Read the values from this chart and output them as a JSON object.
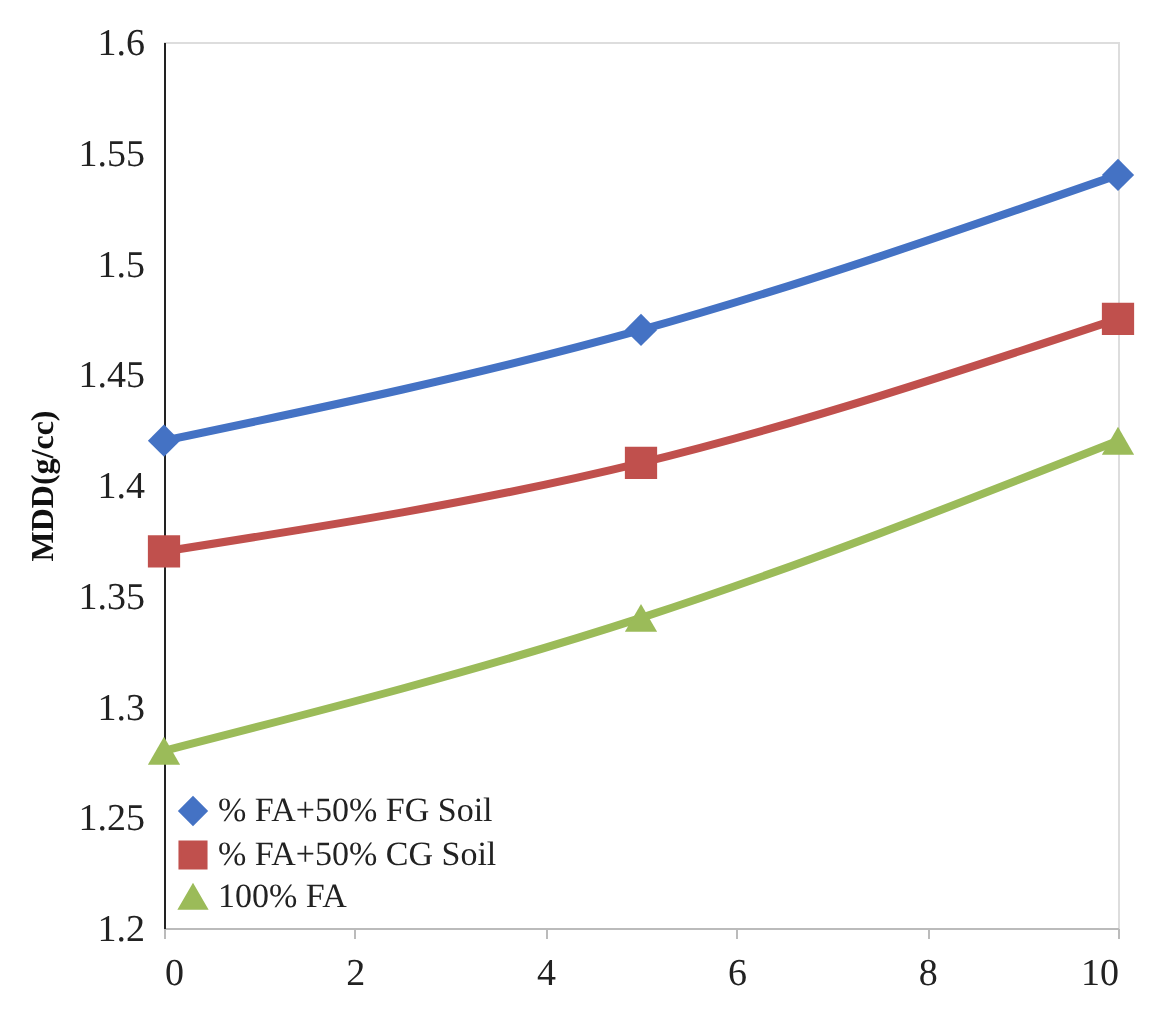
{
  "chart_data": {
    "type": "line",
    "ylabel": "MDD(g/cc)",
    "x": [
      0,
      5,
      10
    ],
    "series": [
      {
        "name": "% FA+50% FG Soil",
        "color": "#4472c4",
        "marker": "diamond",
        "values": [
          1.42,
          1.47,
          1.54
        ]
      },
      {
        "name": "% FA+50% CG Soil",
        "color": "#c0504d",
        "marker": "square",
        "values": [
          1.37,
          1.41,
          1.475
        ]
      },
      {
        "name": "100% FA",
        "color": "#9bbb59",
        "marker": "triangle",
        "values": [
          1.28,
          1.34,
          1.42
        ]
      }
    ],
    "xlim": [
      0,
      10
    ],
    "xticks": [
      0,
      2,
      4,
      6,
      8,
      10
    ],
    "ylim": [
      1.2,
      1.6
    ],
    "yticks": [
      1.2,
      1.25,
      1.3,
      1.35,
      1.4,
      1.45,
      1.5,
      1.55,
      1.6
    ],
    "grid": false,
    "legend": "bottom left",
    "line_style": "solid"
  }
}
